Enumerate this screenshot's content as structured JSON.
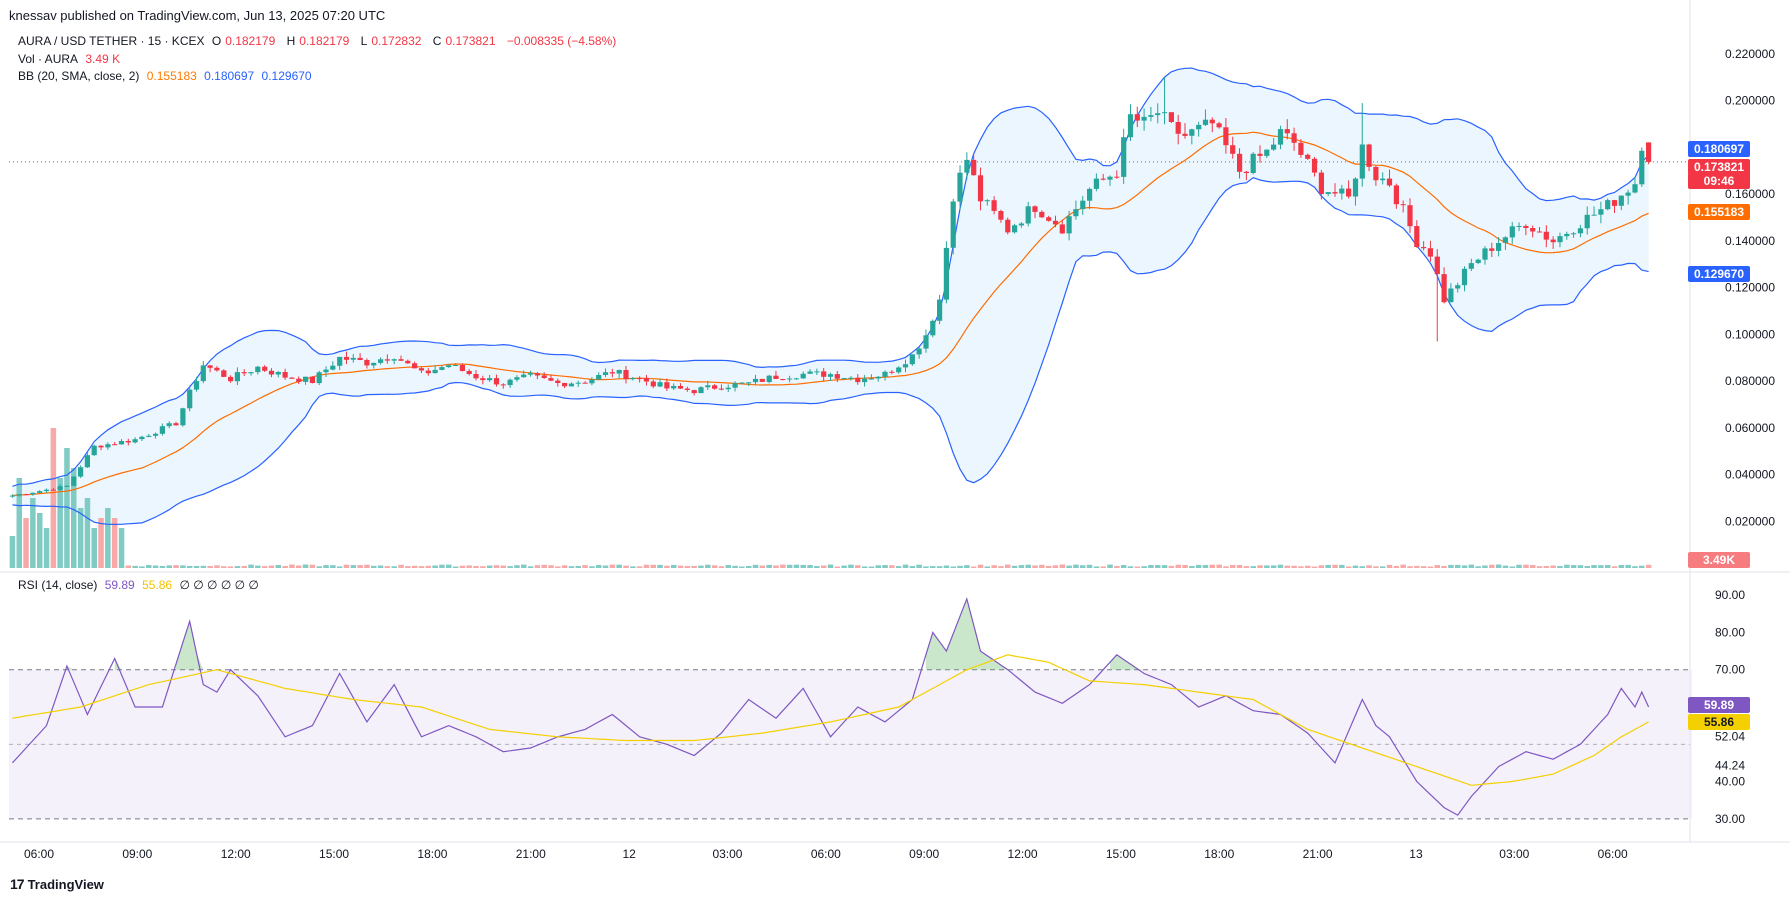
{
  "header": {
    "publisher": "knessav published on TradingView.com, Jun 13, 2025 07:20 UTC"
  },
  "legend": {
    "symbol": "AURA / USD TETHER · 15 · KCEX",
    "ohlc": {
      "o_label": "O",
      "o": "0.182179",
      "h_label": "H",
      "h": "0.182179",
      "l_label": "L",
      "l": "0.172832",
      "c_label": "C",
      "c": "0.173821",
      "change": "−0.008335 (−4.58%)"
    },
    "vol_label": "Vol · AURA",
    "vol_value": "3.49 K",
    "bb_label": "BB (20, SMA, close, 2)",
    "bb_basis": "0.155183",
    "bb_upper": "0.180697",
    "bb_lower": "0.129670",
    "rsi_label": "RSI (14, close)",
    "rsi_value": "59.89",
    "rsi_ma": "55.86",
    "rsi_extra": "∅ ∅ ∅ ∅ ∅ ∅"
  },
  "footer": {
    "brand": "TradingView",
    "logo": "17"
  },
  "colors": {
    "up": "#26a69a",
    "down": "#f23645",
    "bb": "#2962ff",
    "basis": "#ff6d00",
    "rsi": "#7e57c2",
    "rsi_ma": "#f5d000",
    "bb_fill": "#e3f2fd",
    "rsi_fill": "#ede7f6"
  },
  "chart_data": [
    {
      "type": "candlestick",
      "title": "AURA / USD TETHER · 15 · KCEX",
      "y_ticks": [
        "0.220000",
        "0.200000",
        "0.160000",
        "0.140000",
        "0.120000",
        "0.100000",
        "0.080000",
        "0.060000",
        "0.040000",
        "0.020000"
      ],
      "ylim": [
        0.0,
        0.226
      ],
      "x_ticks": [
        "06:00",
        "09:00",
        "12:00",
        "15:00",
        "18:00",
        "21:00",
        "12",
        "03:00",
        "06:00",
        "09:00",
        "12:00",
        "15:00",
        "18:00",
        "21:00",
        "13",
        "03:00",
        "06:00"
      ],
      "price_tags": {
        "bb_upper": "0.180697",
        "last": "0.173821",
        "countdown": "09:46",
        "basis": "0.155183",
        "bb_lower": "0.129670",
        "volume": "3.49K"
      },
      "close_anchors": [
        [
          0,
          0.031
        ],
        [
          8,
          0.035
        ],
        [
          12,
          0.052
        ],
        [
          18,
          0.055
        ],
        [
          24,
          0.062
        ],
        [
          26,
          0.075
        ],
        [
          28,
          0.087
        ],
        [
          32,
          0.081
        ],
        [
          36,
          0.086
        ],
        [
          40,
          0.082
        ],
        [
          44,
          0.08
        ],
        [
          48,
          0.09
        ],
        [
          52,
          0.088
        ],
        [
          56,
          0.091
        ],
        [
          60,
          0.083
        ],
        [
          64,
          0.087
        ],
        [
          68,
          0.082
        ],
        [
          72,
          0.079
        ],
        [
          76,
          0.082
        ],
        [
          80,
          0.079
        ],
        [
          84,
          0.08
        ],
        [
          88,
          0.084
        ],
        [
          92,
          0.081
        ],
        [
          96,
          0.077
        ],
        [
          100,
          0.076
        ],
        [
          104,
          0.078
        ],
        [
          108,
          0.079
        ],
        [
          112,
          0.082
        ],
        [
          116,
          0.083
        ],
        [
          120,
          0.083
        ],
        [
          124,
          0.081
        ],
        [
          128,
          0.083
        ],
        [
          132,
          0.091
        ],
        [
          134,
          0.1
        ],
        [
          136,
          0.115
        ],
        [
          138,
          0.16
        ],
        [
          140,
          0.175
        ],
        [
          142,
          0.158
        ],
        [
          146,
          0.145
        ],
        [
          150,
          0.155
        ],
        [
          154,
          0.146
        ],
        [
          158,
          0.162
        ],
        [
          162,
          0.17
        ],
        [
          164,
          0.193
        ],
        [
          166,
          0.19
        ],
        [
          168,
          0.195
        ],
        [
          170,
          0.188
        ],
        [
          172,
          0.185
        ],
        [
          176,
          0.19
        ],
        [
          180,
          0.17
        ],
        [
          184,
          0.178
        ],
        [
          186,
          0.186
        ],
        [
          188,
          0.182
        ],
        [
          192,
          0.163
        ],
        [
          196,
          0.158
        ],
        [
          198,
          0.18
        ],
        [
          200,
          0.168
        ],
        [
          202,
          0.165
        ],
        [
          206,
          0.14
        ],
        [
          208,
          0.135
        ],
        [
          210,
          0.115
        ],
        [
          212,
          0.122
        ],
        [
          214,
          0.13
        ],
        [
          218,
          0.14
        ],
        [
          222,
          0.148
        ],
        [
          226,
          0.14
        ],
        [
          230,
          0.148
        ],
        [
          234,
          0.155
        ],
        [
          236,
          0.16
        ],
        [
          238,
          0.165
        ],
        [
          239,
          0.182
        ],
        [
          240,
          0.174
        ]
      ],
      "volume_spikes": [
        [
          0,
          3.2
        ],
        [
          1,
          9
        ],
        [
          2,
          5
        ],
        [
          3,
          7
        ],
        [
          4,
          5.5
        ],
        [
          5,
          4
        ],
        [
          6,
          14
        ],
        [
          7,
          9
        ],
        [
          8,
          12
        ],
        [
          9,
          10
        ],
        [
          10,
          6
        ],
        [
          11,
          7
        ],
        [
          12,
          4
        ],
        [
          13,
          5
        ],
        [
          14,
          6
        ],
        [
          15,
          5
        ],
        [
          16,
          4
        ]
      ],
      "volume_range": [
        0,
        14
      ]
    },
    {
      "type": "line",
      "title": "RSI (14, close)",
      "y_ticks": [
        "90.00",
        "80.00",
        "70.00",
        "52.04",
        "44.24",
        "40.00",
        "30.00"
      ],
      "ylim": [
        27,
        93
      ],
      "bands": [
        30,
        70
      ],
      "midline": 50,
      "tags": {
        "rsi": "59.89",
        "rsi_ma": "55.86"
      },
      "rsi_anchors": [
        [
          0,
          45
        ],
        [
          5,
          55
        ],
        [
          8,
          71
        ],
        [
          11,
          58
        ],
        [
          15,
          73
        ],
        [
          18,
          60
        ],
        [
          22,
          60
        ],
        [
          26,
          83
        ],
        [
          28,
          66
        ],
        [
          30,
          64
        ],
        [
          32,
          70
        ],
        [
          36,
          63
        ],
        [
          40,
          52
        ],
        [
          44,
          55
        ],
        [
          48,
          69
        ],
        [
          52,
          56
        ],
        [
          56,
          66
        ],
        [
          60,
          52
        ],
        [
          64,
          55
        ],
        [
          68,
          52
        ],
        [
          72,
          48
        ],
        [
          76,
          49
        ],
        [
          80,
          52
        ],
        [
          84,
          54
        ],
        [
          88,
          58
        ],
        [
          92,
          52
        ],
        [
          96,
          50
        ],
        [
          100,
          47
        ],
        [
          104,
          53
        ],
        [
          108,
          62
        ],
        [
          112,
          57
        ],
        [
          116,
          65
        ],
        [
          120,
          52
        ],
        [
          124,
          60
        ],
        [
          128,
          56
        ],
        [
          132,
          62
        ],
        [
          135,
          80
        ],
        [
          137,
          75
        ],
        [
          140,
          89
        ],
        [
          142,
          75
        ],
        [
          146,
          70
        ],
        [
          150,
          64
        ],
        [
          154,
          61
        ],
        [
          158,
          66
        ],
        [
          162,
          74
        ],
        [
          166,
          69
        ],
        [
          170,
          66
        ],
        [
          174,
          60
        ],
        [
          178,
          63
        ],
        [
          182,
          59
        ],
        [
          186,
          58
        ],
        [
          190,
          53
        ],
        [
          194,
          45
        ],
        [
          198,
          62
        ],
        [
          200,
          55
        ],
        [
          202,
          52
        ],
        [
          206,
          40
        ],
        [
          210,
          33
        ],
        [
          212,
          31
        ],
        [
          214,
          36
        ],
        [
          218,
          44
        ],
        [
          222,
          48
        ],
        [
          226,
          46
        ],
        [
          230,
          50
        ],
        [
          234,
          58
        ],
        [
          236,
          65
        ],
        [
          238,
          60
        ],
        [
          239,
          64
        ],
        [
          240,
          60
        ]
      ],
      "rsi_ma_anchors": [
        [
          0,
          57
        ],
        [
          10,
          60
        ],
        [
          20,
          66
        ],
        [
          30,
          70
        ],
        [
          40,
          65
        ],
        [
          50,
          62
        ],
        [
          60,
          60
        ],
        [
          70,
          54
        ],
        [
          80,
          52
        ],
        [
          90,
          51
        ],
        [
          100,
          51
        ],
        [
          110,
          53
        ],
        [
          120,
          56
        ],
        [
          130,
          60
        ],
        [
          140,
          70
        ],
        [
          146,
          74
        ],
        [
          152,
          72
        ],
        [
          158,
          67
        ],
        [
          166,
          66
        ],
        [
          174,
          64
        ],
        [
          182,
          62
        ],
        [
          190,
          54
        ],
        [
          198,
          49
        ],
        [
          206,
          44
        ],
        [
          214,
          39
        ],
        [
          220,
          40
        ],
        [
          226,
          42
        ],
        [
          232,
          47
        ],
        [
          236,
          52
        ],
        [
          240,
          56
        ]
      ]
    }
  ]
}
